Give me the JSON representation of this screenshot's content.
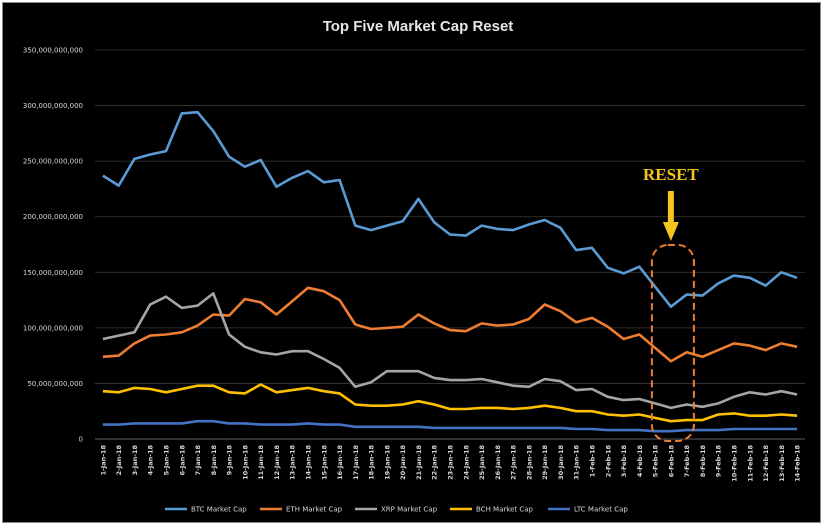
{
  "chart_data": {
    "type": "line",
    "title": "Top Five Market Cap Reset",
    "xlabel": "",
    "ylabel": "",
    "ylim": [
      0,
      350000000000
    ],
    "y_ticks": [
      "0",
      "50,000,000,000",
      "100,000,000,000",
      "150,000,000,000",
      "200,000,000,000",
      "250,000,000,000",
      "300,000,000,000",
      "350,000,000,000"
    ],
    "grid": "horizontal",
    "legend_position": "bottom",
    "categories": [
      "1-Jan-18",
      "2-Jan-18",
      "3-Jan-18",
      "4-Jan-18",
      "5-Jan-18",
      "6-Jan-18",
      "7-Jan-18",
      "8-Jan-18",
      "9-Jan-18",
      "10-Jan-18",
      "11-Jan-18",
      "12-Jan-18",
      "13-Jan-18",
      "14-Jan-18",
      "15-Jan-18",
      "16-Jan-18",
      "17-Jan-18",
      "18-Jan-18",
      "19-Jan-18",
      "20-Jan-18",
      "21-Jan-18",
      "22-Jan-18",
      "23-Jan-18",
      "24-Jan-18",
      "25-Jan-18",
      "26-Jan-18",
      "27-Jan-18",
      "28-Jan-18",
      "29-Jan-18",
      "30-Jan-18",
      "31-Jan-18",
      "1-Feb-18",
      "2-Feb-18",
      "3-Feb-18",
      "4-Feb-18",
      "5-Feb-18",
      "6-Feb-18",
      "7-Feb-18",
      "8-Feb-18",
      "9-Feb-18",
      "10-Feb-18",
      "11-Feb-18",
      "12-Feb-18",
      "13-Feb-18",
      "14-Feb-18"
    ],
    "series": [
      {
        "name": "BTC Market Cap",
        "color": "#5b9bd5",
        "values": [
          237000000000,
          228000000000,
          252000000000,
          256000000000,
          259000000000,
          293000000000,
          294000000000,
          277000000000,
          254000000000,
          245000000000,
          251000000000,
          227000000000,
          235000000000,
          241000000000,
          231000000000,
          233000000000,
          192000000000,
          188000000000,
          192000000000,
          196000000000,
          216000000000,
          195000000000,
          184000000000,
          183000000000,
          192000000000,
          189000000000,
          188000000000,
          193000000000,
          197000000000,
          190000000000,
          170000000000,
          172000000000,
          154000000000,
          149000000000,
          155000000000,
          137000000000,
          119000000000,
          130000000000,
          129000000000,
          140000000000,
          147000000000,
          145000000000,
          138000000000,
          150000000000,
          145000000000
        ]
      },
      {
        "name": "ETH Market Cap",
        "color": "#ed7d31",
        "values": [
          74000000000,
          75000000000,
          86000000000,
          93000000000,
          94000000000,
          96000000000,
          102000000000,
          112000000000,
          111000000000,
          126000000000,
          123000000000,
          112000000000,
          124000000000,
          136000000000,
          133000000000,
          125000000000,
          103000000000,
          99000000000,
          100000000000,
          101000000000,
          112000000000,
          104000000000,
          98000000000,
          97000000000,
          104000000000,
          102000000000,
          103000000000,
          108000000000,
          121000000000,
          115000000000,
          105000000000,
          109000000000,
          101000000000,
          90000000000,
          94000000000,
          82000000000,
          70000000000,
          78000000000,
          74000000000,
          80000000000,
          86000000000,
          84000000000,
          80000000000,
          86000000000,
          83000000000
        ]
      },
      {
        "name": "XRP Market Cap",
        "color": "#a5a5a5",
        "values": [
          90000000000,
          93000000000,
          96000000000,
          121000000000,
          128000000000,
          118000000000,
          120000000000,
          131000000000,
          94000000000,
          83000000000,
          78000000000,
          76000000000,
          79000000000,
          79000000000,
          72000000000,
          64000000000,
          47000000000,
          51000000000,
          61000000000,
          61000000000,
          61000000000,
          55000000000,
          53000000000,
          53000000000,
          54000000000,
          51000000000,
          48000000000,
          47000000000,
          54000000000,
          52000000000,
          44000000000,
          45000000000,
          38000000000,
          35000000000,
          36000000000,
          32000000000,
          28000000000,
          31000000000,
          29000000000,
          32000000000,
          38000000000,
          42000000000,
          40000000000,
          43000000000,
          40000000000
        ]
      },
      {
        "name": "BCH Market Cap",
        "color": "#ffc000",
        "values": [
          43000000000,
          42000000000,
          46000000000,
          45000000000,
          42000000000,
          45000000000,
          48000000000,
          48000000000,
          42000000000,
          41000000000,
          49000000000,
          42000000000,
          44000000000,
          46000000000,
          43000000000,
          41000000000,
          31000000000,
          30000000000,
          30000000000,
          31000000000,
          34000000000,
          31000000000,
          27000000000,
          27000000000,
          28000000000,
          28000000000,
          27000000000,
          28000000000,
          30000000000,
          28000000000,
          25000000000,
          25000000000,
          22000000000,
          21000000000,
          22000000000,
          19000000000,
          16000000000,
          17000000000,
          17000000000,
          22000000000,
          23000000000,
          21000000000,
          21000000000,
          22000000000,
          21000000000
        ]
      },
      {
        "name": "LTC Market Cap",
        "color": "#4472c4",
        "values": [
          13000000000,
          13000000000,
          14000000000,
          14000000000,
          14000000000,
          14000000000,
          16000000000,
          16000000000,
          14000000000,
          14000000000,
          13000000000,
          13000000000,
          13000000000,
          14000000000,
          13000000000,
          13000000000,
          11000000000,
          11000000000,
          11000000000,
          11000000000,
          11000000000,
          10000000000,
          10000000000,
          10000000000,
          10000000000,
          10000000000,
          10000000000,
          10000000000,
          10000000000,
          10000000000,
          9000000000,
          9000000000,
          8000000000,
          8000000000,
          8000000000,
          7000000000,
          7000000000,
          8000000000,
          8000000000,
          8000000000,
          9000000000,
          9000000000,
          9000000000,
          9000000000,
          9000000000
        ]
      }
    ],
    "annotation": {
      "text": "RESET",
      "color": "#f3c51e",
      "box_color": "#ed7d31",
      "target_category": "6-Feb-18"
    }
  }
}
